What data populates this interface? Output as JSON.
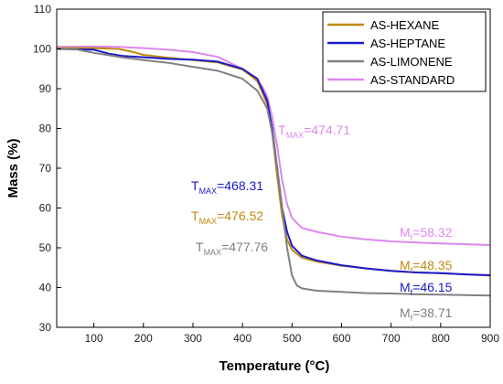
{
  "chart_data": {
    "type": "line",
    "xlabel": "Temperature (°C)",
    "ylabel": "Mass (%)",
    "xlim": [
      25,
      900
    ],
    "ylim": [
      30,
      110
    ],
    "xticks": [
      100,
      200,
      300,
      400,
      500,
      600,
      700,
      800,
      900
    ],
    "yticks": [
      30,
      40,
      50,
      60,
      70,
      80,
      90,
      100,
      110
    ],
    "grid": false,
    "legend_position": "top-right",
    "series": [
      {
        "name": "AS-HEXANE",
        "color": "#c08a12",
        "x": [
          25,
          100,
          150,
          180,
          200,
          250,
          300,
          350,
          400,
          430,
          450,
          460,
          470,
          480,
          490,
          500,
          520,
          550,
          600,
          650,
          700,
          750,
          800,
          850,
          900
        ],
        "y": [
          100.2,
          100.2,
          100,
          99.2,
          98.5,
          97.8,
          97.2,
          96.6,
          94.8,
          92,
          86,
          79,
          68,
          58,
          52,
          49.5,
          47.5,
          46.5,
          45.5,
          44.8,
          44.2,
          43.8,
          43.6,
          43.3,
          43
        ]
      },
      {
        "name": "AS-HEPTANE",
        "color": "#1a1acc",
        "x": [
          25,
          100,
          130,
          160,
          200,
          250,
          300,
          350,
          400,
          430,
          450,
          460,
          470,
          480,
          490,
          500,
          520,
          550,
          600,
          650,
          700,
          750,
          800,
          850,
          900
        ],
        "y": [
          100,
          99.8,
          98.8,
          98.2,
          97.9,
          97.5,
          97.3,
          96.8,
          95,
          92.5,
          87,
          80,
          70,
          60,
          54,
          50.5,
          48,
          46.8,
          45.6,
          44.8,
          44.2,
          43.8,
          43.6,
          43.3,
          43.1
        ]
      },
      {
        "name": "AS-LIMONENE",
        "color": "#808080",
        "x": [
          25,
          60,
          100,
          150,
          200,
          250,
          300,
          350,
          400,
          430,
          450,
          460,
          470,
          480,
          490,
          500,
          510,
          520,
          550,
          600,
          650,
          700,
          750,
          800,
          850,
          900
        ],
        "y": [
          100,
          100,
          99,
          98,
          97.2,
          96.5,
          95.5,
          94.5,
          92.5,
          89.5,
          85,
          79,
          70,
          60,
          50,
          43,
          40.5,
          39.8,
          39.2,
          38.9,
          38.6,
          38.5,
          38.3,
          38.2,
          38.1,
          38
        ]
      },
      {
        "name": "AS-STANDARD",
        "color": "#dd88ee",
        "x": [
          25,
          100,
          150,
          200,
          250,
          300,
          350,
          400,
          420,
          440,
          450,
          460,
          470,
          480,
          490,
          500,
          520,
          550,
          600,
          650,
          700,
          750,
          800,
          850,
          900
        ],
        "y": [
          100.5,
          100.6,
          100.5,
          100.2,
          99.8,
          99.2,
          98,
          95,
          93,
          90.5,
          88,
          83,
          75.5,
          67,
          61,
          57.5,
          55,
          54,
          52.8,
          52.1,
          51.6,
          51.3,
          51.1,
          50.9,
          50.7
        ]
      }
    ],
    "annotations": {
      "tmax_standard": {
        "label": "T",
        "sub": "MAX",
        "value": "=474.71"
      },
      "tmax_heptane": {
        "label": "T",
        "sub": "MAX",
        "value": "=468.31"
      },
      "tmax_hexane": {
        "label": "T",
        "sub": "MAX",
        "value": "=476.52"
      },
      "tmax_limonene": {
        "label": "T",
        "sub": "MAX",
        "value": "=477.76"
      },
      "mf_standard": {
        "label": "M",
        "sub": "f",
        "value": "=58.32"
      },
      "mf_hexane": {
        "label": "M",
        "sub": "f",
        "value": "=48.35"
      },
      "mf_heptane": {
        "label": "M",
        "sub": "f",
        "value": "=46.15"
      },
      "mf_limonene": {
        "label": "M",
        "sub": "f",
        "value": "=38.71"
      }
    }
  }
}
